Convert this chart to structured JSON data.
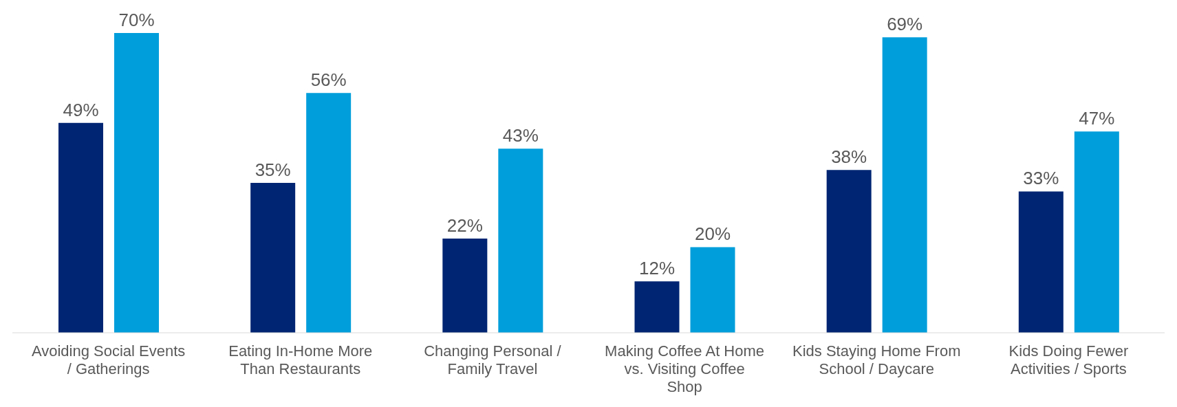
{
  "chart_data": {
    "type": "bar",
    "categories": [
      "Avoiding Social Events / Gatherings",
      "Eating In-Home More Than Restaurants",
      "Changing Personal / Family Travel",
      "Making Coffee At Home vs. Visiting Coffee Shop",
      "Kids Staying Home From School / Daycare",
      "Kids Doing Fewer Activities / Sports"
    ],
    "series": [
      {
        "color": "#002673",
        "values": [
          49,
          35,
          22,
          12,
          38,
          33
        ],
        "value_labels": [
          "49%",
          "35%",
          "22%",
          "12%",
          "38%",
          "33%"
        ]
      },
      {
        "color": "#009fdb",
        "values": [
          70,
          56,
          43,
          20,
          69,
          47
        ],
        "value_labels": [
          "70%",
          "56%",
          "43%",
          "20%",
          "69%",
          "47%"
        ]
      }
    ],
    "grid": false,
    "legend": false
  }
}
